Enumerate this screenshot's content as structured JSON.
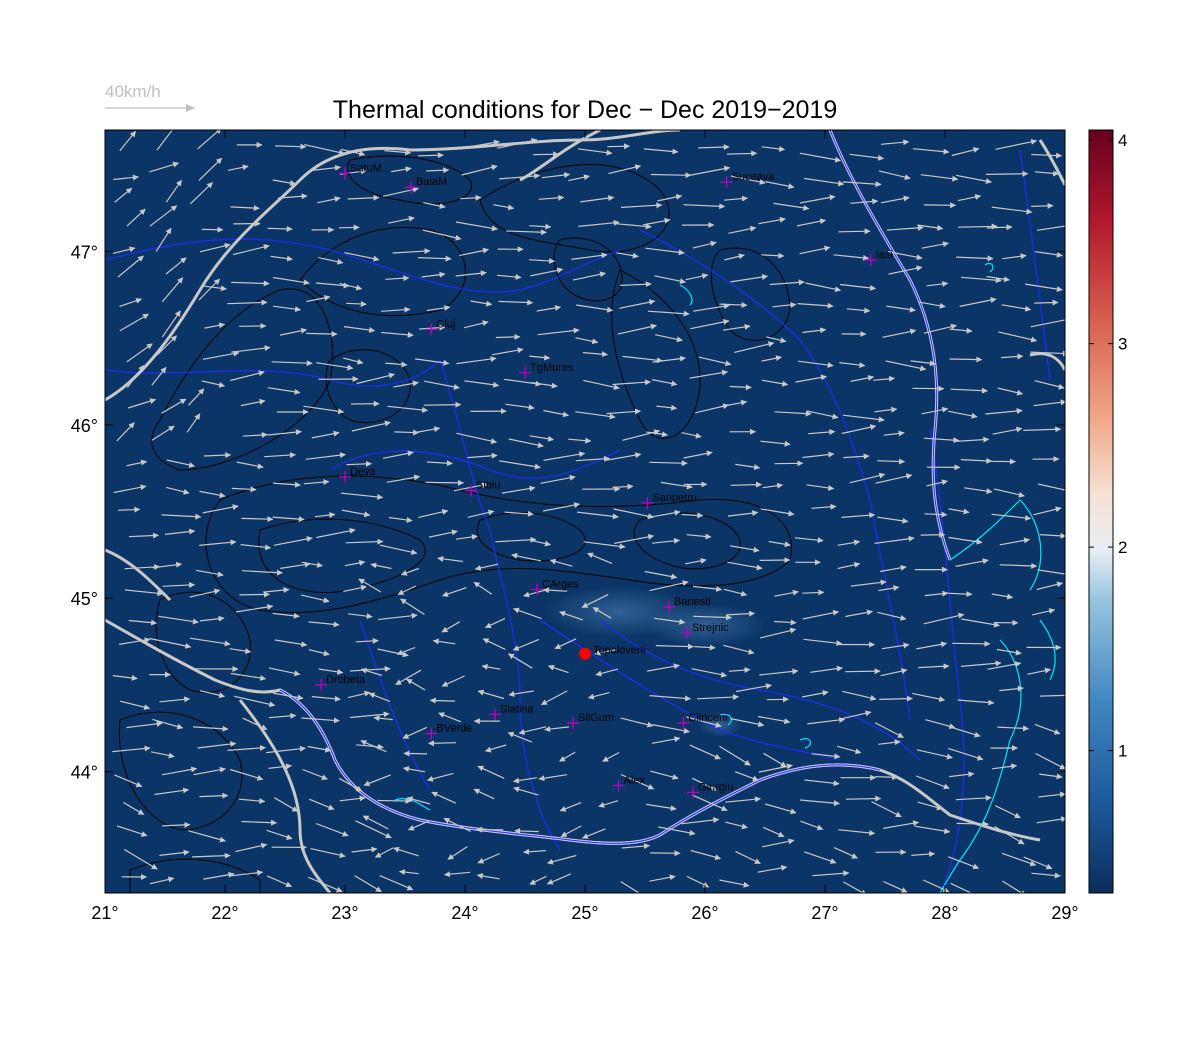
{
  "title": "Thermal conditions for Dec − Dec  2019−2019",
  "wind_legend": {
    "label": "40km/h",
    "color": "#c0c0c0"
  },
  "colors": {
    "field": "#0b3566",
    "field_warm": "#3d6fa5",
    "river": "#1c2ee6",
    "border": "#c8c8c8",
    "danube": "#cfc8ff",
    "lakes": "#00e5ff",
    "contour": "#000000",
    "arrow": "#c8c8c8",
    "city_marker": "#c000c0",
    "highlight": "#ff0000"
  },
  "map": {
    "lon_range": [
      21,
      29
    ],
    "lat_range": [
      43.3,
      47.7
    ],
    "lon_ticks": [
      {
        "value": 21,
        "label": "21°"
      },
      {
        "value": 22,
        "label": "22°"
      },
      {
        "value": 23,
        "label": "23°"
      },
      {
        "value": 24,
        "label": "24°"
      },
      {
        "value": 25,
        "label": "25°"
      },
      {
        "value": 26,
        "label": "26°"
      },
      {
        "value": 27,
        "label": "27°"
      },
      {
        "value": 28,
        "label": "28°"
      },
      {
        "value": 29,
        "label": "29°"
      }
    ],
    "lat_ticks": [
      {
        "value": 44,
        "label": "44°"
      },
      {
        "value": 45,
        "label": "45°"
      },
      {
        "value": 46,
        "label": "46°"
      },
      {
        "value": 47,
        "label": "47°"
      }
    ],
    "cities": [
      {
        "name": "SatuM",
        "lon": 23.0,
        "lat": 47.45
      },
      {
        "name": "BaiaM",
        "lon": 23.55,
        "lat": 47.37
      },
      {
        "name": "Suceava",
        "lon": 26.18,
        "lat": 47.4
      },
      {
        "name": "Iasi",
        "lon": 27.38,
        "lat": 46.95
      },
      {
        "name": "Cluj",
        "lon": 23.72,
        "lat": 46.55
      },
      {
        "name": "TgMures",
        "lon": 24.5,
        "lat": 46.3
      },
      {
        "name": "Deva",
        "lon": 23.0,
        "lat": 45.7
      },
      {
        "name": "Sibiu",
        "lon": 24.05,
        "lat": 45.62
      },
      {
        "name": "Sanpetru",
        "lon": 25.52,
        "lat": 45.55
      },
      {
        "name": "CArges",
        "lon": 24.6,
        "lat": 45.05
      },
      {
        "name": "Banesti",
        "lon": 25.7,
        "lat": 44.95
      },
      {
        "name": "Strejnic",
        "lon": 25.85,
        "lat": 44.8
      },
      {
        "name": "Drobeta",
        "lon": 22.8,
        "lat": 44.5
      },
      {
        "name": "Slatina",
        "lon": 24.25,
        "lat": 44.33
      },
      {
        "name": "SilGum",
        "lon": 24.9,
        "lat": 44.28
      },
      {
        "name": "Clinceni",
        "lon": 25.82,
        "lat": 44.28
      },
      {
        "name": "BVerde",
        "lon": 23.72,
        "lat": 44.22
      },
      {
        "name": "Alex",
        "lon": 25.28,
        "lat": 43.92
      },
      {
        "name": "Giurgiu",
        "lon": 25.9,
        "lat": 43.88
      }
    ],
    "highlight": {
      "name": "Topoloveni",
      "lon": 25.0,
      "lat": 44.68
    }
  },
  "colorbar": {
    "range": [
      0.3,
      4.05
    ],
    "ticks": [
      {
        "value": 1,
        "label": "1"
      },
      {
        "value": 2,
        "label": "2"
      },
      {
        "value": 3,
        "label": "3"
      },
      {
        "value": 4,
        "label": "4"
      }
    ]
  }
}
